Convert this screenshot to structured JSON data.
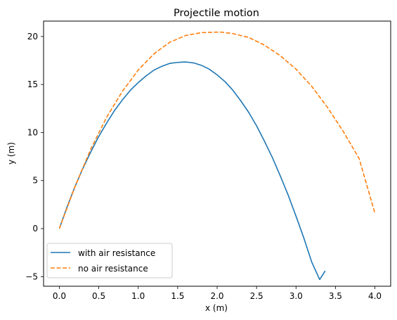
{
  "chart_data": {
    "type": "line",
    "title": "Projectile motion",
    "xlabel": "x (m)",
    "ylabel": "y (m)",
    "xlim": [
      -0.2,
      4.2
    ],
    "ylim": [
      -6.0,
      21.6
    ],
    "xticks": [
      0.0,
      0.5,
      1.0,
      1.5,
      2.0,
      2.5,
      3.0,
      3.5,
      4.0
    ],
    "xtick_labels": [
      "0.0",
      "0.5",
      "1.0",
      "1.5",
      "2.0",
      "2.5",
      "3.0",
      "3.5",
      "4.0"
    ],
    "yticks": [
      -5,
      0,
      5,
      10,
      15,
      20
    ],
    "ytick_labels": [
      "−5",
      "0",
      "5",
      "10",
      "15",
      "20"
    ],
    "grid": false,
    "legend_position": "lower-left",
    "series": [
      {
        "name": "with air resistance",
        "color": "#1f77b4",
        "style": "solid",
        "x": [
          0.0,
          0.1,
          0.2,
          0.3,
          0.4,
          0.5,
          0.6,
          0.7,
          0.8,
          0.9,
          1.0,
          1.1,
          1.2,
          1.3,
          1.4,
          1.5,
          1.6,
          1.65,
          1.7,
          1.8,
          1.9,
          2.0,
          2.1,
          2.2,
          2.3,
          2.4,
          2.5,
          2.6,
          2.7,
          2.8,
          2.9,
          3.0,
          3.1,
          3.2,
          3.3,
          3.37
        ],
        "y": [
          0.0,
          2.3,
          4.4,
          6.3,
          8.0,
          9.6,
          11.0,
          12.3,
          13.4,
          14.4,
          15.2,
          15.9,
          16.5,
          16.9,
          17.2,
          17.3,
          17.35,
          17.3,
          17.25,
          17.0,
          16.6,
          16.0,
          15.3,
          14.4,
          13.3,
          12.1,
          10.7,
          9.1,
          7.4,
          5.5,
          3.5,
          1.3,
          -1.0,
          -3.5,
          -5.3,
          -4.4
        ]
      },
      {
        "name": "no air resistance",
        "color": "#ff7f0e",
        "style": "dashed",
        "x": [
          0.0,
          0.2,
          0.4,
          0.6,
          0.8,
          1.0,
          1.2,
          1.4,
          1.6,
          1.8,
          2.0,
          2.05,
          2.2,
          2.4,
          2.6,
          2.8,
          3.0,
          3.2,
          3.4,
          3.6,
          3.8,
          4.0
        ],
        "y": [
          0.0,
          4.4,
          8.3,
          11.6,
          14.3,
          16.5,
          18.2,
          19.4,
          20.1,
          20.4,
          20.45,
          20.45,
          20.3,
          19.9,
          19.1,
          18.0,
          16.6,
          14.8,
          12.6,
          10.1,
          7.3,
          1.6
        ]
      }
    ]
  }
}
